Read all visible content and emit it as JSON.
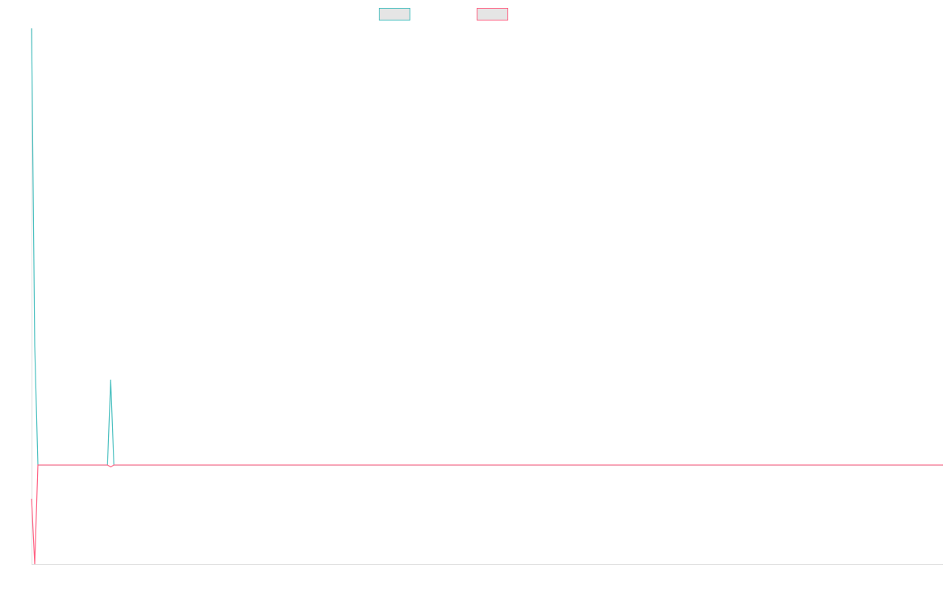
{
  "chart_data": {
    "type": "line",
    "title": "",
    "xlabel": "",
    "ylabel": "",
    "legend_placement": "top",
    "grid": false,
    "ylim": [
      -1,
      4.4
    ],
    "series": [
      {
        "color": "#4bc0c0",
        "values": [
          4.4,
          1.2,
          0,
          0,
          0,
          0,
          0,
          0,
          0,
          0,
          0,
          0,
          0,
          0,
          0,
          0,
          0,
          0,
          0,
          0,
          0,
          0,
          0,
          0,
          0,
          0.86,
          0,
          0,
          0,
          0,
          0,
          0,
          0,
          0,
          0,
          0,
          0,
          0,
          0,
          0,
          0,
          0,
          0,
          0,
          0,
          0,
          0,
          0,
          0,
          0,
          0,
          0,
          0,
          0,
          0,
          0,
          0,
          0,
          0,
          0,
          0,
          0,
          0,
          0,
          0,
          0,
          0,
          0,
          0,
          0,
          0,
          0,
          0,
          0,
          0,
          0,
          0,
          0,
          0,
          0,
          0,
          0,
          0,
          0,
          0,
          0,
          0,
          0,
          0,
          0,
          0,
          0,
          0,
          0,
          0,
          0,
          0,
          0,
          0,
          0,
          0,
          0,
          0,
          0,
          0,
          0,
          0,
          0,
          0,
          0,
          0,
          0,
          0,
          0,
          0,
          0,
          0,
          0,
          0,
          0,
          0,
          0,
          0,
          0,
          0,
          0,
          0,
          0,
          0,
          0,
          0,
          0,
          0,
          0,
          0,
          0,
          0,
          0,
          0,
          0,
          0,
          0,
          0,
          0,
          0,
          0,
          0,
          0,
          0,
          0,
          0,
          0,
          0,
          0,
          0,
          0,
          0,
          0,
          0,
          0,
          0,
          0,
          0,
          0,
          0,
          0,
          0,
          0,
          0,
          0,
          0,
          0,
          0,
          0,
          0,
          0,
          0,
          0,
          0,
          0,
          0,
          0,
          0,
          0,
          0,
          0,
          0,
          0,
          0,
          0,
          0,
          0,
          0,
          0,
          0,
          0,
          0,
          0,
          0,
          0,
          0,
          0,
          0,
          0,
          0,
          0,
          0,
          0,
          0,
          0,
          0,
          0,
          0,
          0,
          0,
          0,
          0,
          0,
          0,
          0,
          0,
          0,
          0,
          0,
          0,
          0,
          0,
          0,
          0,
          0,
          0,
          0,
          0,
          0,
          0,
          0,
          0,
          0,
          0,
          0,
          0,
          0,
          0,
          0,
          0,
          0,
          0,
          0,
          0,
          0,
          0,
          0,
          0,
          0,
          0,
          0,
          0,
          0,
          0,
          0,
          0,
          0,
          0,
          0,
          0,
          0,
          0,
          0,
          0,
          0,
          0,
          0,
          0,
          0,
          0,
          0,
          0,
          0,
          0,
          0,
          0,
          0,
          0,
          0,
          0,
          0,
          0,
          0,
          0
        ]
      },
      {
        "color": "#ff6384",
        "values": [
          -0.34,
          -1,
          0,
          0,
          0,
          0,
          0,
          0,
          0,
          0,
          0,
          0,
          0,
          0,
          0,
          0,
          0,
          0,
          0,
          0,
          0,
          0,
          0,
          0,
          0,
          -0.02,
          0,
          0,
          0,
          0,
          0,
          0,
          0,
          0,
          0,
          0,
          0,
          0,
          0,
          0,
          0,
          0,
          0,
          0,
          0,
          0,
          0,
          0,
          0,
          0,
          0,
          0,
          0,
          0,
          0,
          0,
          0,
          0,
          0,
          0,
          0,
          0,
          0,
          0,
          0,
          0,
          0,
          0,
          0,
          0,
          0,
          0,
          0,
          0,
          0,
          0,
          0,
          0,
          0,
          0,
          0,
          0,
          0,
          0,
          0,
          0,
          0,
          0,
          0,
          0,
          0,
          0,
          0,
          0,
          0,
          0,
          0,
          0,
          0,
          0,
          0,
          0,
          0,
          0,
          0,
          0,
          0,
          0,
          0,
          0,
          0,
          0,
          0,
          0,
          0,
          0,
          0,
          0,
          0,
          0,
          0,
          0,
          0,
          0,
          0,
          0,
          0,
          0,
          0,
          0,
          0,
          0,
          0,
          0,
          0,
          0,
          0,
          0,
          0,
          0,
          0,
          0,
          0,
          0,
          0,
          0,
          0,
          0,
          0,
          0,
          0,
          0,
          0,
          0,
          0,
          0,
          0,
          0,
          0,
          0,
          0,
          0,
          0,
          0,
          0,
          0,
          0,
          0,
          0,
          0,
          0,
          0,
          0,
          0,
          0,
          0,
          0,
          0,
          0,
          0,
          0,
          0,
          0,
          0,
          0,
          0,
          0,
          0,
          0,
          0,
          0,
          0,
          0,
          0,
          0,
          0,
          0,
          0,
          0,
          0,
          0,
          0,
          0,
          0,
          0,
          0,
          0,
          0,
          0,
          0,
          0,
          0,
          0,
          0,
          0,
          0,
          0,
          0,
          0,
          0,
          0,
          0,
          0,
          0,
          0,
          0,
          0,
          0,
          0,
          0,
          0,
          0,
          0,
          0,
          0,
          0,
          0,
          0,
          0,
          0,
          0,
          0,
          0,
          0,
          0,
          0,
          0,
          0,
          0,
          0,
          0,
          0,
          0,
          0,
          0,
          0,
          0,
          0,
          0,
          0,
          0,
          0,
          0,
          0,
          0,
          0,
          0,
          0,
          0,
          0,
          0,
          0,
          0,
          0,
          0,
          0,
          0,
          0,
          0,
          0,
          0,
          0,
          0,
          0,
          0,
          0,
          0,
          0,
          0
        ]
      }
    ]
  }
}
